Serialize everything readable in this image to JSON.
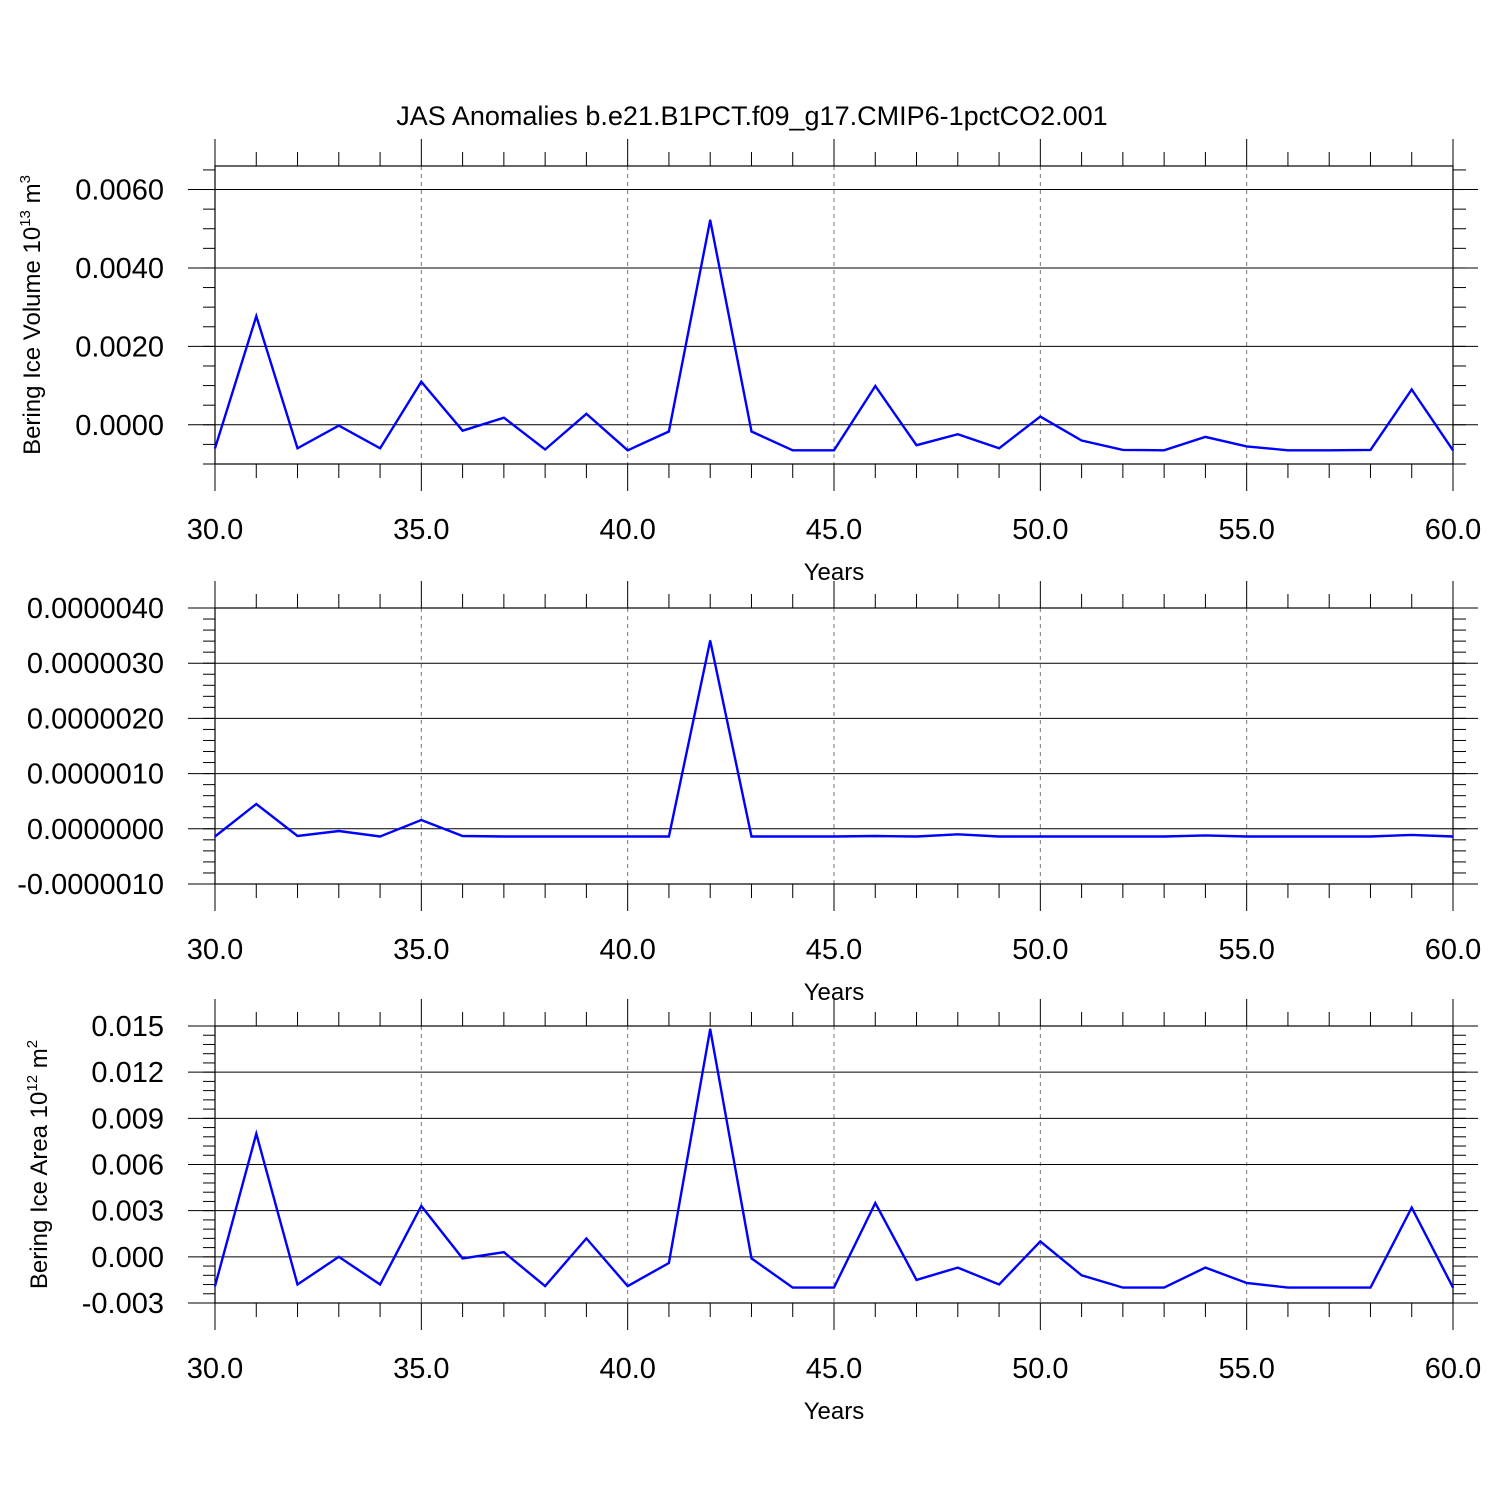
{
  "page_title": "JAS Anomalies b.e21.B1PCT.f09_g17.CMIP6-1pctCO2.001",
  "colors": {
    "line": "#0000ff",
    "axis": "#000000",
    "grid": "#777777",
    "background": "#ffffff"
  },
  "chart_data": [
    {
      "type": "line",
      "title": "JAS Anomalies b.e21.B1PCT.f09_g17.CMIP6-1pctCO2.001",
      "xlabel": "Years",
      "ylabel_main": "Bering Ice Volume 10",
      "ylabel_exp": "13",
      "ylabel_unit": " m",
      "ylabel_unit_exp": "3",
      "xlim": [
        30,
        60
      ],
      "ylim": [
        -0.001,
        0.0066
      ],
      "x_ticks": [
        30,
        35,
        40,
        45,
        50,
        55,
        60
      ],
      "x_tick_labels": [
        "30.0",
        "35.0",
        "40.0",
        "45.0",
        "50.0",
        "55.0",
        "60.0"
      ],
      "y_ticks": [
        0.0,
        0.002,
        0.004,
        0.006
      ],
      "y_tick_labels": [
        "0.0000",
        "0.0020",
        "0.0040",
        "0.0060"
      ],
      "y_minor_step": 0.0005,
      "x_minor_step": 1,
      "grid": "vertical-dashed-major",
      "x": [
        30,
        31,
        32,
        33,
        34,
        35,
        36,
        37,
        38,
        39,
        40,
        41,
        42,
        43,
        44,
        45,
        46,
        47,
        48,
        49,
        50,
        51,
        52,
        53,
        54,
        55,
        56,
        57,
        58,
        59,
        60
      ],
      "series": [
        {
          "values": [
            -0.0006,
            0.00277,
            -0.0006,
            -2e-05,
            -0.0006,
            0.0011,
            -0.00015,
            0.00018,
            -0.00063,
            0.00028,
            -0.00065,
            -0.00017,
            0.00522,
            -0.00017,
            -0.00065,
            -0.00065,
            0.00099,
            -0.00052,
            -0.00024,
            -0.0006,
            0.00021,
            -0.0004,
            -0.00064,
            -0.00065,
            -0.00031,
            -0.00055,
            -0.00065,
            -0.00065,
            -0.00064,
            0.0009,
            -0.00065
          ]
        }
      ]
    },
    {
      "type": "line",
      "title": "",
      "xlabel": "Years",
      "ylabel_main": "",
      "ylabel_exp": "",
      "ylabel_unit": "",
      "ylabel_unit_exp": "",
      "xlim": [
        30,
        60
      ],
      "ylim": [
        -1e-06,
        4e-06
      ],
      "x_ticks": [
        30,
        35,
        40,
        45,
        50,
        55,
        60
      ],
      "x_tick_labels": [
        "30.0",
        "35.0",
        "40.0",
        "45.0",
        "50.0",
        "55.0",
        "60.0"
      ],
      "y_ticks": [
        -1e-06,
        0.0,
        1e-06,
        2e-06,
        3e-06,
        4e-06
      ],
      "y_tick_labels": [
        "-0.0000010",
        "0.0000000",
        "0.0000010",
        "0.0000020",
        "0.0000030",
        "0.0000040"
      ],
      "y_minor_step": 2e-07,
      "x_minor_step": 1,
      "grid": "vertical-dashed-major",
      "x": [
        30,
        31,
        32,
        33,
        34,
        35,
        36,
        37,
        38,
        39,
        40,
        41,
        42,
        43,
        44,
        45,
        46,
        47,
        48,
        49,
        50,
        51,
        52,
        53,
        54,
        55,
        56,
        57,
        58,
        59,
        60
      ],
      "series": [
        {
          "values": [
            -1.4e-07,
            4.5e-07,
            -1.3e-07,
            -4e-08,
            -1.4e-07,
            1.6e-07,
            -1.3e-07,
            -1.4e-07,
            -1.4e-07,
            -1.4e-07,
            -1.4e-07,
            -1.4e-07,
            3.41e-06,
            -1.4e-07,
            -1.4e-07,
            -1.4e-07,
            -1.3e-07,
            -1.4e-07,
            -1e-07,
            -1.4e-07,
            -1.4e-07,
            -1.4e-07,
            -1.4e-07,
            -1.4e-07,
            -1.2e-07,
            -1.4e-07,
            -1.4e-07,
            -1.4e-07,
            -1.4e-07,
            -1.1e-07,
            -1.4e-07
          ]
        }
      ]
    },
    {
      "type": "line",
      "title": "",
      "xlabel": "Years",
      "ylabel_main": "Bering Ice Area 10",
      "ylabel_exp": "12",
      "ylabel_unit": " m",
      "ylabel_unit_exp": "2",
      "xlim": [
        30,
        60
      ],
      "ylim": [
        -0.003,
        0.015
      ],
      "x_ticks": [
        30,
        35,
        40,
        45,
        50,
        55,
        60
      ],
      "x_tick_labels": [
        "30.0",
        "35.0",
        "40.0",
        "45.0",
        "50.0",
        "55.0",
        "60.0"
      ],
      "y_ticks": [
        -0.003,
        0.0,
        0.003,
        0.006,
        0.009,
        0.012,
        0.015
      ],
      "y_tick_labels": [
        "-0.003",
        "0.000",
        "0.003",
        "0.006",
        "0.009",
        "0.012",
        "0.015"
      ],
      "y_minor_step": 0.0006,
      "x_minor_step": 1,
      "grid": "vertical-dashed-major",
      "x": [
        30,
        31,
        32,
        33,
        34,
        35,
        36,
        37,
        38,
        39,
        40,
        41,
        42,
        43,
        44,
        45,
        46,
        47,
        48,
        49,
        50,
        51,
        52,
        53,
        54,
        55,
        56,
        57,
        58,
        59,
        60
      ],
      "series": [
        {
          "values": [
            -0.0019,
            0.008,
            -0.0018,
            0.0,
            -0.0018,
            0.0033,
            -0.0001,
            0.0003,
            -0.0019,
            0.0012,
            -0.0019,
            -0.0004,
            0.0148,
            -0.0001,
            -0.002,
            -0.002,
            0.0035,
            -0.0015,
            -0.0007,
            -0.0018,
            0.001,
            -0.0012,
            -0.002,
            -0.002,
            -0.0007,
            -0.0017,
            -0.002,
            -0.002,
            -0.002,
            0.0032,
            -0.002
          ]
        }
      ]
    }
  ]
}
